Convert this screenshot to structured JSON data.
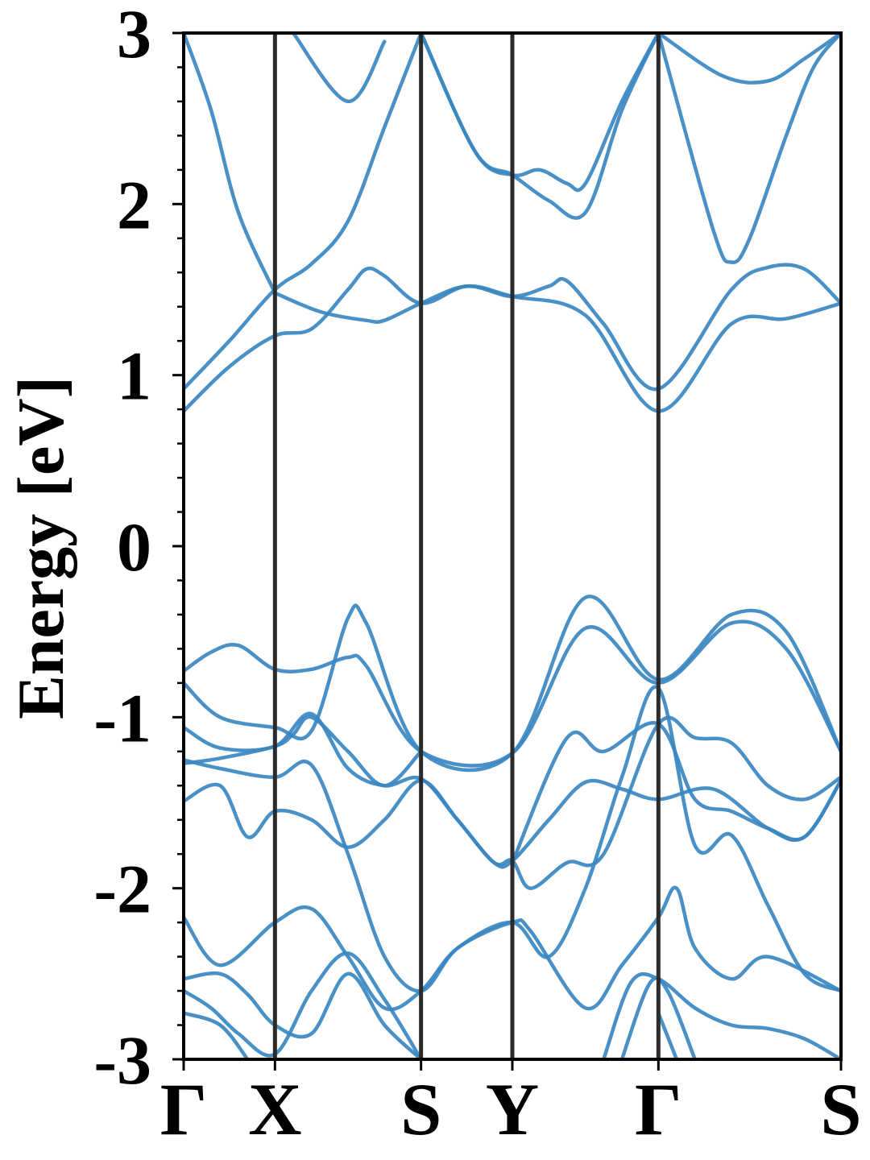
{
  "chart_data": {
    "type": "line",
    "title": "",
    "xlabel": "",
    "ylabel": "Energy [eV]",
    "ylim": [
      -3,
      3
    ],
    "yticks": [
      -3,
      -2,
      -1,
      0,
      1,
      2,
      3
    ],
    "ytick_labels": [
      "-3",
      "-2",
      "-1",
      "0",
      "1",
      "2",
      "3"
    ],
    "yminor_step": 0.2,
    "xlim": [
      0,
      3.6
    ],
    "high_symmetry_points": [
      {
        "label": "Γ",
        "x": 0.0
      },
      {
        "label": "X",
        "x": 0.5
      },
      {
        "label": "S",
        "x": 1.3
      },
      {
        "label": "Y",
        "x": 1.8
      },
      {
        "label": "Γ",
        "x": 2.6
      },
      {
        "label": "S",
        "x": 3.6
      }
    ],
    "grid": false,
    "line_color": "#3a87c1",
    "separator_color": "#2b2b2b",
    "series": [
      {
        "values": [
          [
            0,
            0.79
          ],
          [
            0.25,
            1.05
          ],
          [
            0.5,
            1.23
          ],
          [
            0.7,
            1.27
          ],
          [
            0.9,
            1.5
          ],
          [
            1.0,
            1.62
          ],
          [
            1.1,
            1.58
          ],
          [
            1.3,
            1.42
          ],
          [
            1.55,
            1.52
          ],
          [
            1.8,
            1.46
          ],
          [
            2.2,
            1.35
          ],
          [
            2.6,
            0.79
          ],
          [
            3.0,
            1.3
          ],
          [
            3.3,
            1.33
          ],
          [
            3.6,
            1.42
          ]
        ]
      },
      {
        "values": [
          [
            0,
            0.92
          ],
          [
            0.25,
            1.2
          ],
          [
            0.5,
            1.5
          ],
          [
            0.7,
            1.65
          ],
          [
            0.9,
            1.9
          ],
          [
            1.1,
            2.45
          ],
          [
            1.3,
            3.0
          ]
        ]
      },
      {
        "values": [
          [
            0.5,
            1.48
          ],
          [
            0.75,
            1.37
          ],
          [
            1.0,
            1.32
          ],
          [
            1.1,
            1.32
          ],
          [
            1.3,
            1.42
          ],
          [
            1.55,
            1.52
          ],
          [
            1.8,
            1.46
          ],
          [
            2.0,
            1.52
          ],
          [
            2.1,
            1.55
          ],
          [
            2.3,
            1.3
          ],
          [
            2.6,
            0.92
          ],
          [
            3.0,
            1.5
          ],
          [
            3.2,
            1.63
          ],
          [
            3.4,
            1.62
          ],
          [
            3.6,
            1.42
          ]
        ]
      },
      {
        "values": [
          [
            0,
            3.0
          ],
          [
            0.15,
            2.55
          ],
          [
            0.3,
            1.95
          ],
          [
            0.5,
            1.48
          ]
        ]
      },
      {
        "values": [
          [
            0.6,
            3.0
          ],
          [
            0.9,
            2.6
          ],
          [
            1.1,
            2.95
          ]
        ]
      },
      {
        "values": [
          [
            1.3,
            3.0
          ],
          [
            1.6,
            2.3
          ],
          [
            1.8,
            2.17
          ],
          [
            2.0,
            2.02
          ],
          [
            2.2,
            1.95
          ],
          [
            2.4,
            2.55
          ],
          [
            2.6,
            3.0
          ]
        ]
      },
      {
        "values": [
          [
            1.3,
            3.0
          ],
          [
            1.6,
            2.3
          ],
          [
            1.8,
            2.17
          ],
          [
            1.95,
            2.2
          ],
          [
            2.1,
            2.12
          ],
          [
            2.2,
            2.12
          ],
          [
            2.4,
            2.6
          ],
          [
            2.6,
            3.0
          ]
        ]
      },
      {
        "values": [
          [
            2.6,
            3.0
          ],
          [
            2.9,
            1.85
          ],
          [
            3.0,
            1.66
          ],
          [
            3.1,
            1.8
          ],
          [
            3.3,
            2.4
          ],
          [
            3.45,
            2.8
          ],
          [
            3.6,
            3.0
          ]
        ]
      },
      {
        "values": [
          [
            2.6,
            3.0
          ],
          [
            2.95,
            2.75
          ],
          [
            3.2,
            2.72
          ],
          [
            3.4,
            2.85
          ],
          [
            3.6,
            3.0
          ]
        ]
      },
      {
        "values": [
          [
            0,
            -0.73
          ],
          [
            0.15,
            -0.62
          ],
          [
            0.3,
            -0.58
          ],
          [
            0.5,
            -0.72
          ],
          [
            0.7,
            -0.72
          ],
          [
            0.9,
            -0.65
          ],
          [
            1.0,
            -0.7
          ],
          [
            1.3,
            -1.2
          ],
          [
            1.8,
            -1.21
          ],
          [
            2.2,
            -0.48
          ],
          [
            2.6,
            -0.8
          ],
          [
            3.0,
            -0.45
          ],
          [
            3.3,
            -0.6
          ],
          [
            3.6,
            -1.2
          ]
        ]
      },
      {
        "values": [
          [
            0,
            -0.8
          ],
          [
            0.2,
            -1.0
          ],
          [
            0.5,
            -1.06
          ],
          [
            0.7,
            -1.08
          ],
          [
            0.9,
            -0.42
          ],
          [
            1.0,
            -0.45
          ],
          [
            1.3,
            -1.2
          ],
          [
            1.8,
            -1.21
          ],
          [
            2.2,
            -0.3
          ],
          [
            2.6,
            -0.78
          ],
          [
            3.0,
            -0.4
          ],
          [
            3.3,
            -0.5
          ],
          [
            3.6,
            -1.2
          ]
        ]
      },
      {
        "values": [
          [
            0,
            -1.06
          ],
          [
            0.2,
            -1.18
          ],
          [
            0.5,
            -1.17
          ],
          [
            0.7,
            -0.98
          ],
          [
            0.9,
            -1.3
          ],
          [
            1.1,
            -1.4
          ],
          [
            1.3,
            -1.36
          ],
          [
            1.5,
            -1.6
          ],
          [
            1.7,
            -1.85
          ],
          [
            1.8,
            -1.84
          ],
          [
            2.0,
            -1.6
          ],
          [
            2.2,
            -1.38
          ],
          [
            2.4,
            -1.42
          ],
          [
            2.6,
            -1.48
          ],
          [
            2.9,
            -1.42
          ],
          [
            3.2,
            -1.65
          ],
          [
            3.4,
            -1.7
          ],
          [
            3.6,
            -1.37
          ]
        ]
      },
      {
        "values": [
          [
            0,
            -1.27
          ],
          [
            0.2,
            -1.24
          ],
          [
            0.5,
            -1.17
          ],
          [
            0.6,
            -1.1
          ],
          [
            0.7,
            -1.0
          ],
          [
            0.9,
            -1.2
          ],
          [
            1.1,
            -1.4
          ],
          [
            1.3,
            -1.2
          ]
        ]
      },
      {
        "values": [
          [
            0,
            -1.49
          ],
          [
            0.2,
            -1.4
          ],
          [
            0.35,
            -1.7
          ],
          [
            0.5,
            -1.55
          ],
          [
            0.7,
            -1.6
          ],
          [
            0.9,
            -1.76
          ],
          [
            1.1,
            -1.6
          ],
          [
            1.3,
            -1.37
          ],
          [
            1.5,
            -1.6
          ],
          [
            1.7,
            -1.85
          ],
          [
            1.8,
            -1.84
          ],
          [
            1.9,
            -2.0
          ],
          [
            2.1,
            -1.85
          ],
          [
            2.3,
            -1.8
          ],
          [
            2.6,
            -1.04
          ],
          [
            2.8,
            -1.12
          ],
          [
            3.0,
            -1.15
          ],
          [
            3.2,
            -1.4
          ],
          [
            3.4,
            -1.48
          ],
          [
            3.6,
            -1.35
          ]
        ]
      },
      {
        "values": [
          [
            0,
            -1.25
          ],
          [
            0.2,
            -1.3
          ],
          [
            0.5,
            -1.35
          ],
          [
            0.7,
            -1.28
          ],
          [
            0.9,
            -1.8
          ],
          [
            1.1,
            -2.4
          ],
          [
            1.3,
            -2.6
          ],
          [
            1.5,
            -2.35
          ],
          [
            1.8,
            -2.2
          ],
          [
            2.0,
            -2.4
          ],
          [
            2.2,
            -2.0
          ],
          [
            2.4,
            -1.35
          ],
          [
            2.6,
            -0.83
          ],
          [
            2.8,
            -1.75
          ],
          [
            3.0,
            -1.69
          ],
          [
            3.2,
            -2.1
          ],
          [
            3.4,
            -2.5
          ],
          [
            3.6,
            -2.6
          ]
        ]
      },
      {
        "values": [
          [
            1.8,
            -1.85
          ],
          [
            2.1,
            -1.12
          ],
          [
            2.3,
            -1.2
          ],
          [
            2.6,
            -1.04
          ],
          [
            2.8,
            -1.48
          ],
          [
            3.0,
            -1.55
          ],
          [
            3.2,
            -1.65
          ],
          [
            3.4,
            -1.7
          ],
          [
            3.6,
            -1.37
          ]
        ]
      },
      {
        "values": [
          [
            0,
            -2.17
          ],
          [
            0.2,
            -2.45
          ],
          [
            0.5,
            -2.2
          ],
          [
            0.7,
            -2.12
          ],
          [
            0.9,
            -2.4
          ],
          [
            1.1,
            -2.7
          ],
          [
            1.3,
            -2.6
          ],
          [
            1.5,
            -2.35
          ],
          [
            1.8,
            -2.2
          ],
          [
            1.9,
            -2.25
          ],
          [
            2.2,
            -2.7
          ],
          [
            2.4,
            -2.45
          ],
          [
            2.6,
            -2.17
          ],
          [
            2.7,
            -2.0
          ],
          [
            2.8,
            -2.35
          ],
          [
            3.0,
            -2.53
          ],
          [
            3.2,
            -2.4
          ],
          [
            3.6,
            -2.6
          ]
        ]
      },
      {
        "values": [
          [
            0,
            -2.53
          ],
          [
            0.2,
            -2.5
          ],
          [
            0.35,
            -2.62
          ],
          [
            0.5,
            -2.8
          ],
          [
            0.7,
            -2.85
          ],
          [
            0.9,
            -2.5
          ],
          [
            1.1,
            -2.8
          ],
          [
            1.3,
            -3.0
          ]
        ]
      },
      {
        "values": [
          [
            0,
            -2.6
          ],
          [
            0.15,
            -2.7
          ],
          [
            0.3,
            -2.85
          ],
          [
            0.5,
            -2.97
          ],
          [
            0.7,
            -2.6
          ],
          [
            0.9,
            -2.38
          ],
          [
            1.1,
            -2.65
          ],
          [
            1.3,
            -3.0
          ]
        ]
      },
      {
        "values": [
          [
            2.3,
            -3.0
          ],
          [
            2.45,
            -2.55
          ],
          [
            2.6,
            -2.53
          ],
          [
            2.8,
            -2.7
          ],
          [
            3.0,
            -2.8
          ],
          [
            3.2,
            -2.82
          ],
          [
            3.4,
            -2.88
          ],
          [
            3.6,
            -3.0
          ]
        ]
      },
      {
        "values": [
          [
            2.4,
            -3.0
          ],
          [
            2.55,
            -2.56
          ],
          [
            2.65,
            -2.6
          ],
          [
            2.8,
            -3.0
          ]
        ]
      },
      {
        "values": [
          [
            0,
            -2.73
          ],
          [
            0.2,
            -2.8
          ],
          [
            0.35,
            -3.0
          ]
        ]
      },
      {
        "values": [
          [
            2.6,
            -2.73
          ],
          [
            2.7,
            -3.0
          ]
        ]
      }
    ]
  }
}
